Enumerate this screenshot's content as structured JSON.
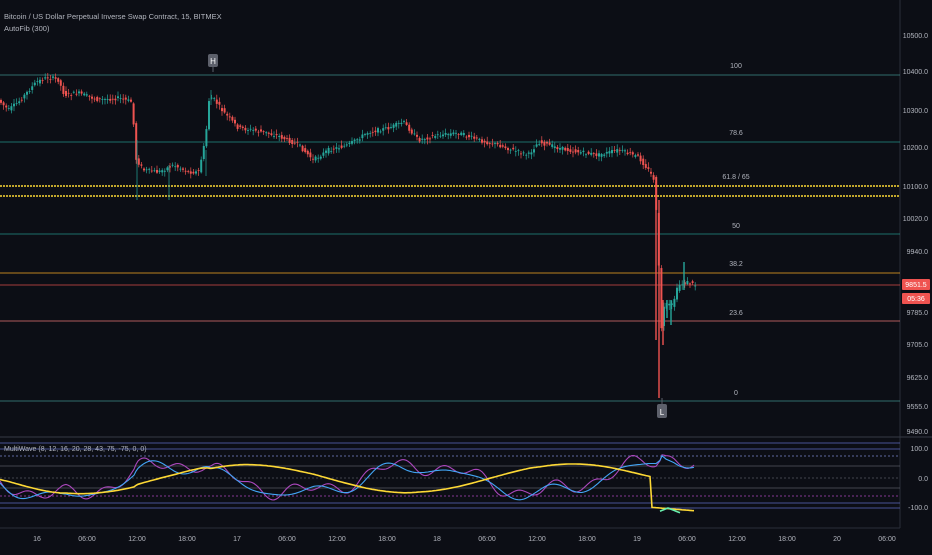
{
  "header": {
    "symbol_title": "Bitcoin / US Dollar Perpetual Inverse Swap Contract, 15, BITMEX",
    "indicator_label": "AutoFib (300)"
  },
  "price_axis": {
    "ticks": [
      "10500.0",
      "10400.0",
      "10300.0",
      "10200.0",
      "10100.0",
      "10020.0",
      "9940.0",
      "9785.0",
      "9705.0",
      "9625.0",
      "9555.0",
      "9490.0"
    ]
  },
  "badges": {
    "last_price": "9851.5",
    "countdown": "05:36"
  },
  "markers": {
    "high": "H",
    "low": "L"
  },
  "fib_levels": [
    {
      "label": "100",
      "color": "#4db6ac"
    },
    {
      "label": "78.6",
      "color": "#26a69a"
    },
    {
      "label": "61.8 / 65",
      "color": "#fdd835"
    },
    {
      "label": "50",
      "color": "#26a69a"
    },
    {
      "label": "38.2",
      "color": "#f9a825"
    },
    {
      "label": "23.6",
      "color": "#e57373"
    },
    {
      "label": "0",
      "color": "#4db6ac"
    }
  ],
  "oscillator": {
    "label": "MultiWave (8, 12, 16, 20, 28, 43, 75, -75, 0, 0)",
    "ticks": [
      "100.0",
      "0.0",
      "-100.0"
    ]
  },
  "time_axis": {
    "labels": [
      "16",
      "06:00",
      "12:00",
      "18:00",
      "17",
      "06:00",
      "12:00",
      "18:00",
      "18",
      "06:00",
      "12:00",
      "18:00",
      "19",
      "06:00",
      "12:00",
      "18:00",
      "20",
      "06:00"
    ]
  },
  "colors": {
    "background": "#0c0e15",
    "candle_up": "#26a69a",
    "candle_down": "#ef5350",
    "last_price_badge": "#ef5350",
    "fib_golden_zone": "#fdd835"
  }
}
